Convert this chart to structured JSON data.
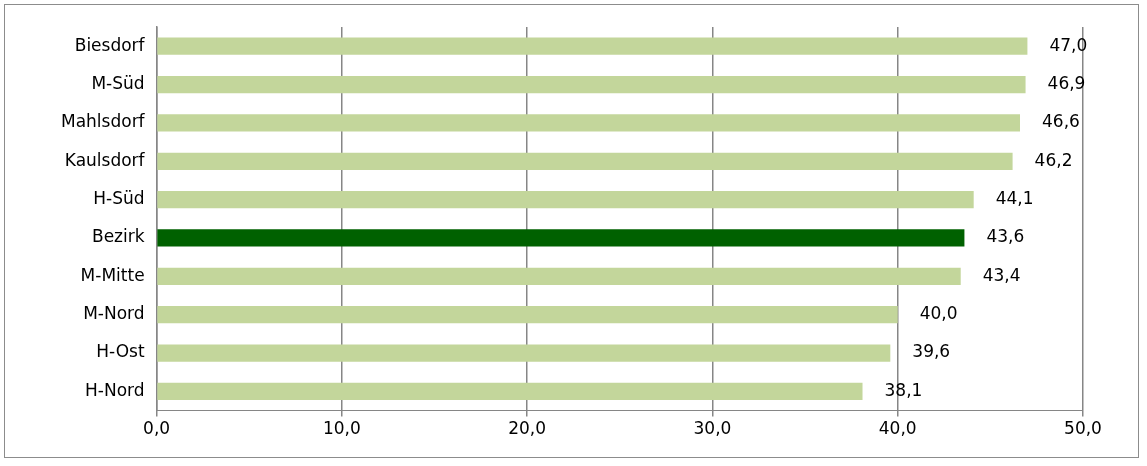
{
  "chart_data": {
    "type": "bar",
    "orientation": "horizontal",
    "categories": [
      "Biesdorf",
      "M-Süd",
      "Mahlsdorf",
      "Kaulsdorf",
      "H-Süd",
      "Bezirk",
      "M-Mitte",
      "M-Nord",
      "H-Ost",
      "H-Nord"
    ],
    "values": [
      47.0,
      46.9,
      46.6,
      46.2,
      44.1,
      43.6,
      43.4,
      40.0,
      39.6,
      38.1
    ],
    "colors": [
      "#c3d69b",
      "#c3d69b",
      "#c3d69b",
      "#c3d69b",
      "#c3d69b",
      "#006100",
      "#c3d69b",
      "#c3d69b",
      "#c3d69b",
      "#c3d69b"
    ],
    "value_labels": [
      "47,0",
      "46,9",
      "46,6",
      "46,2",
      "44,1",
      "43,6",
      "43,4",
      "40,0",
      "39,6",
      "38,1"
    ],
    "xlim": [
      0,
      50
    ],
    "xticks": [
      {
        "value": 0,
        "label": "0,0"
      },
      {
        "value": 10,
        "label": "10,0"
      },
      {
        "value": 20,
        "label": "20,0"
      },
      {
        "value": 30,
        "label": "30,0"
      },
      {
        "value": 40,
        "label": "40,0"
      },
      {
        "value": 50,
        "label": "50,0"
      }
    ],
    "grid": "x",
    "legend": false
  }
}
